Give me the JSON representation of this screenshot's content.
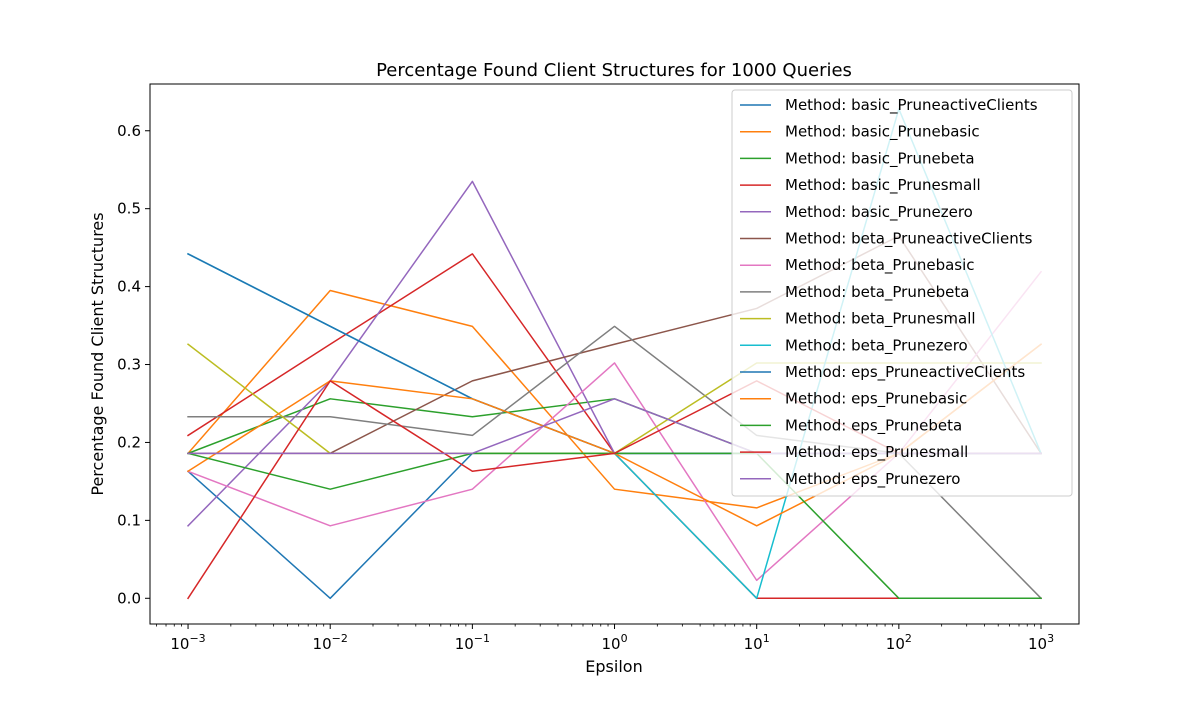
{
  "chart_data": {
    "type": "line",
    "title": "Percentage Found Client Structures for 1000 Queries",
    "xlabel": "Epsilon",
    "ylabel": "Percentage Found Client Structures",
    "x": [
      0.001,
      0.01,
      0.1,
      1,
      10,
      100,
      1000
    ],
    "x_tick_labels": [
      {
        "base": "10",
        "exp": "−3"
      },
      {
        "base": "10",
        "exp": "−2"
      },
      {
        "base": "10",
        "exp": "−1"
      },
      {
        "base": "10",
        "exp": "0"
      },
      {
        "base": "10",
        "exp": "1"
      },
      {
        "base": "10",
        "exp": "2"
      },
      {
        "base": "10",
        "exp": "3"
      }
    ],
    "x_scale": "log",
    "xlim": [
      0.00054,
      1850
    ],
    "ylim": [
      -0.033,
      0.66
    ],
    "y_ticks": [
      "0.0",
      "0.1",
      "0.2",
      "0.3",
      "0.4",
      "0.5",
      "0.6"
    ],
    "grid": false,
    "legend_position": "top-right",
    "series": [
      {
        "name": "Method: basic_PruneactiveClients",
        "color": "#1f77b4",
        "values": [
          0.163,
          0.0,
          0.186,
          0.186,
          0.186,
          0.186,
          0.186
        ]
      },
      {
        "name": "Method: basic_Prunebasic",
        "color": "#ff7f0e",
        "values": [
          0.186,
          0.395,
          0.349,
          0.14,
          0.116,
          0.186,
          0.326
        ]
      },
      {
        "name": "Method: basic_Prunebeta",
        "color": "#2ca02c",
        "values": [
          0.186,
          0.256,
          0.233,
          0.256,
          0.186,
          0.186,
          0.186
        ]
      },
      {
        "name": "Method: basic_Prunesmall",
        "color": "#d62728",
        "values": [
          0.209,
          0.326,
          0.442,
          0.186,
          0.0,
          0.0,
          0.0
        ]
      },
      {
        "name": "Method: basic_Prunezero",
        "color": "#9467bd",
        "values": [
          0.093,
          0.279,
          0.535,
          0.186,
          0.186,
          0.186,
          0.186
        ]
      },
      {
        "name": "Method: beta_PruneactiveClients",
        "color": "#8c564b",
        "values": [
          0.186,
          0.186,
          0.279,
          0.326,
          0.372,
          0.465,
          0.186
        ]
      },
      {
        "name": "Method: beta_Prunebasic",
        "color": "#e377c2",
        "values": [
          0.163,
          0.093,
          0.14,
          0.302,
          0.023,
          0.186,
          0.419
        ]
      },
      {
        "name": "Method: beta_Prunebeta",
        "color": "#7f7f7f",
        "values": [
          0.233,
          0.233,
          0.209,
          0.349,
          0.209,
          0.186,
          0.0
        ]
      },
      {
        "name": "Method: beta_Prunesmall",
        "color": "#bcbd22",
        "values": [
          0.326,
          0.186,
          0.186,
          0.186,
          0.302,
          0.302,
          0.302
        ]
      },
      {
        "name": "Method: beta_Prunezero",
        "color": "#17becf",
        "values": [
          0.442,
          0.349,
          0.256,
          0.186,
          0.0,
          0.628,
          0.186
        ]
      },
      {
        "name": "Method: eps_PruneactiveClients",
        "color": "#1f77b4",
        "values": [
          0.442,
          0.349,
          0.256,
          0.186,
          0.186,
          0.186,
          0.186
        ]
      },
      {
        "name": "Method: eps_Prunebasic",
        "color": "#ff7f0e",
        "values": [
          0.163,
          0.279,
          0.256,
          0.186,
          0.093,
          0.186,
          0.326
        ]
      },
      {
        "name": "Method: eps_Prunebeta",
        "color": "#2ca02c",
        "values": [
          0.186,
          0.14,
          0.186,
          0.186,
          0.186,
          0.0,
          0.0
        ]
      },
      {
        "name": "Method: eps_Prunesmall",
        "color": "#d62728",
        "values": [
          0.0,
          0.279,
          0.163,
          0.186,
          0.279,
          0.186,
          0.186
        ]
      },
      {
        "name": "Method: eps_Prunezero",
        "color": "#9467bd",
        "values": [
          0.186,
          0.186,
          0.186,
          0.256,
          0.186,
          0.186,
          0.186
        ]
      }
    ]
  }
}
